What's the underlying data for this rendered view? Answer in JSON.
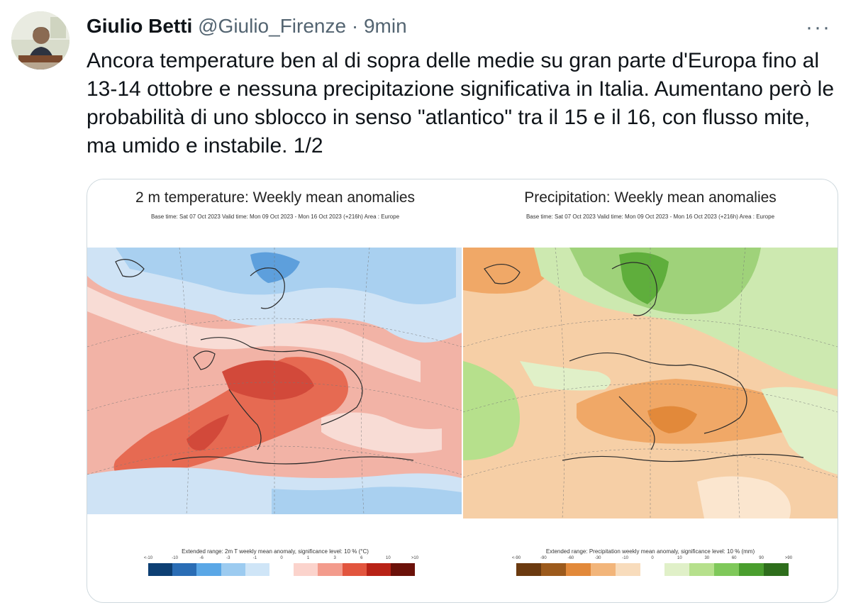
{
  "tweet": {
    "author_name": "Giulio Betti",
    "handle": "@Giulio_Firenze",
    "separator": " · ",
    "time": "9min",
    "more_label": "···",
    "text": "Ancora temperature ben al di sopra delle medie su gran parte d'Europa fino al 13-14 ottobre e nessuna precipitazione significativa in Italia.  Aumentano però le probabilità di uno sblocco in senso \"atlantico\" tra il 15 e il 16, con flusso mite, ma umido e instabile. 1/2"
  },
  "media": {
    "left": {
      "title": "2 m temperature: Weekly mean anomalies",
      "subtitle": "Base time: Sat 07 Oct 2023 Valid time: Mon 09 Oct 2023 - Mon 16 Oct 2023 (+216h) Area : Europe",
      "legend_title": "Extended range: 2m T weekly mean anomaly, significance level: 10 % (°C)",
      "scale_labels": [
        "<-10",
        "-10",
        "-6",
        "-3",
        "-1",
        "0",
        "1",
        "3",
        "6",
        "10",
        ">10"
      ],
      "colors": [
        "#0d3f73",
        "#2a6db5",
        "#5aa7e6",
        "#9ccbf0",
        "#cfe5f7",
        "#ffffff",
        "#fbd3cc",
        "#f39b8c",
        "#e2553e",
        "#b82216",
        "#6b1109"
      ]
    },
    "right": {
      "title": "Precipitation: Weekly mean anomalies",
      "subtitle": "Base time: Sat 07 Oct 2023 Valid time: Mon 09 Oct 2023 - Mon 16 Oct 2023 (+216h) Area : Europe",
      "legend_title": "Extended range: Precipitation weekly mean anomaly, significance level: 10 % (mm)",
      "scale_labels": [
        "<-90",
        "-90",
        "-60",
        "-30",
        "-10",
        "0",
        "10",
        "30",
        "60",
        "90",
        ">90"
      ],
      "colors": [
        "#6b3a10",
        "#9c5a1c",
        "#e2893a",
        "#f2b57a",
        "#f8dcbc",
        "#ffffff",
        "#e0f0c8",
        "#b6e08c",
        "#7fc85a",
        "#4a9e2e",
        "#2e6e1c"
      ]
    }
  }
}
